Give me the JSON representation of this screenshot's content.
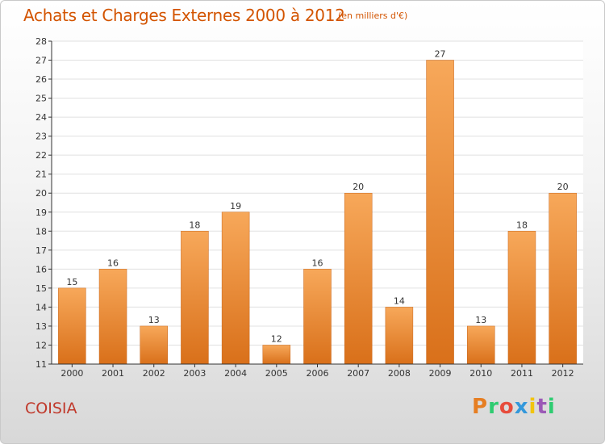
{
  "header": {
    "title": "Achats et Charges Externes 2000 à 2012",
    "unit": "(en milliers d'€)"
  },
  "footer": {
    "place": "COISIA",
    "brand_letters": [
      "P",
      "r",
      "o",
      "x",
      "i",
      "t",
      "i"
    ],
    "brand_colors": [
      "#e67e22",
      "#2ecc71",
      "#e74c3c",
      "#3498db",
      "#f1c40f",
      "#9b59b6",
      "#2ecc71"
    ]
  },
  "colors": {
    "bar_light": "#f7a85a",
    "bar_dark": "#d9701a",
    "axis": "#333333",
    "grid": "#e0e0e0",
    "title": "#d35400"
  },
  "chart_data": {
    "type": "bar",
    "title": "Achats et Charges Externes 2000 à 2012",
    "xlabel": "",
    "ylabel": "",
    "categories": [
      "2000",
      "2001",
      "2002",
      "2003",
      "2004",
      "2005",
      "2006",
      "2007",
      "2008",
      "2009",
      "2010",
      "2011",
      "2012"
    ],
    "values": [
      15,
      16,
      13,
      18,
      19,
      12,
      16,
      20,
      14,
      27,
      13,
      18,
      20
    ],
    "ylim": [
      11,
      28
    ],
    "yticks": [
      11,
      12,
      13,
      14,
      15,
      16,
      17,
      18,
      19,
      20,
      21,
      22,
      23,
      24,
      25,
      26,
      27,
      28
    ],
    "grid": true,
    "data_labels": true
  }
}
